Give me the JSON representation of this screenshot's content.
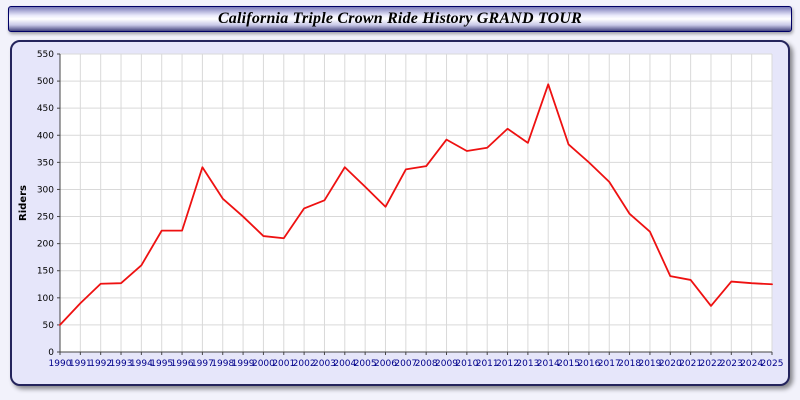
{
  "header": {
    "title": "California Triple Crown Ride History GRAND TOUR"
  },
  "chart_data": {
    "type": "line",
    "title": "California Triple Crown Ride History GRAND TOUR",
    "xlabel": "",
    "ylabel": "Riders",
    "ylim": [
      0,
      550
    ],
    "ytick_step": 50,
    "grid": true,
    "legend_position": "none",
    "line_color": "#ee1111",
    "plot_bg": "#ffffff",
    "grid_color": "#d9d9d9",
    "axis_color": "#444444",
    "x_tick_color": "#00008b",
    "y_tick_color": "#000000",
    "x": [
      1990,
      1991,
      1992,
      1993,
      1994,
      1995,
      1996,
      1997,
      1998,
      1999,
      2000,
      2001,
      2002,
      2003,
      2004,
      2005,
      2006,
      2007,
      2008,
      2009,
      2010,
      2011,
      2012,
      2013,
      2014,
      2015,
      2016,
      2017,
      2018,
      2019,
      2020,
      2021,
      2022,
      2023,
      2024,
      2025
    ],
    "values": [
      50,
      90,
      126,
      127,
      160,
      224,
      224,
      341,
      283,
      250,
      214,
      210,
      265,
      280,
      341,
      305,
      268,
      337,
      343,
      392,
      371,
      377,
      412,
      386,
      494,
      383,
      350,
      314,
      255,
      222,
      140,
      133,
      85,
      130,
      127,
      125
    ]
  }
}
